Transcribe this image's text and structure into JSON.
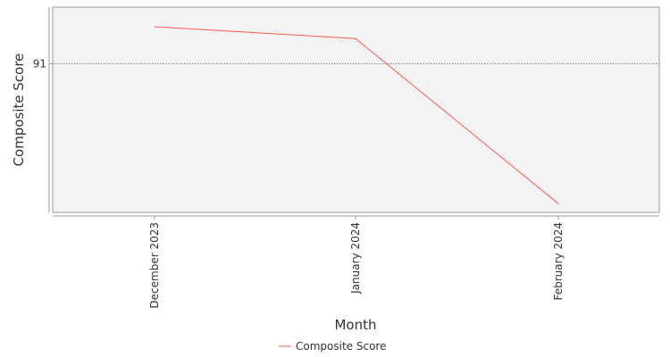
{
  "chart_data": {
    "type": "line",
    "title": "",
    "xlabel": "Month",
    "ylabel": "Composite Score",
    "categories": [
      "December 2023",
      "January 2024",
      "February 2024"
    ],
    "series": [
      {
        "name": "Composite Score",
        "values": [
          91.85,
          91.58,
          87.8
        ],
        "color": "#ff5a4f"
      }
    ],
    "ylim": [
      87.6,
      92.3
    ],
    "yticks": [
      91
    ],
    "ytick_labels": [
      "91"
    ],
    "grid": "horizontal dotted at y ticks",
    "legend_position": "bottom-center",
    "plot_background": "#f3f3f3"
  }
}
